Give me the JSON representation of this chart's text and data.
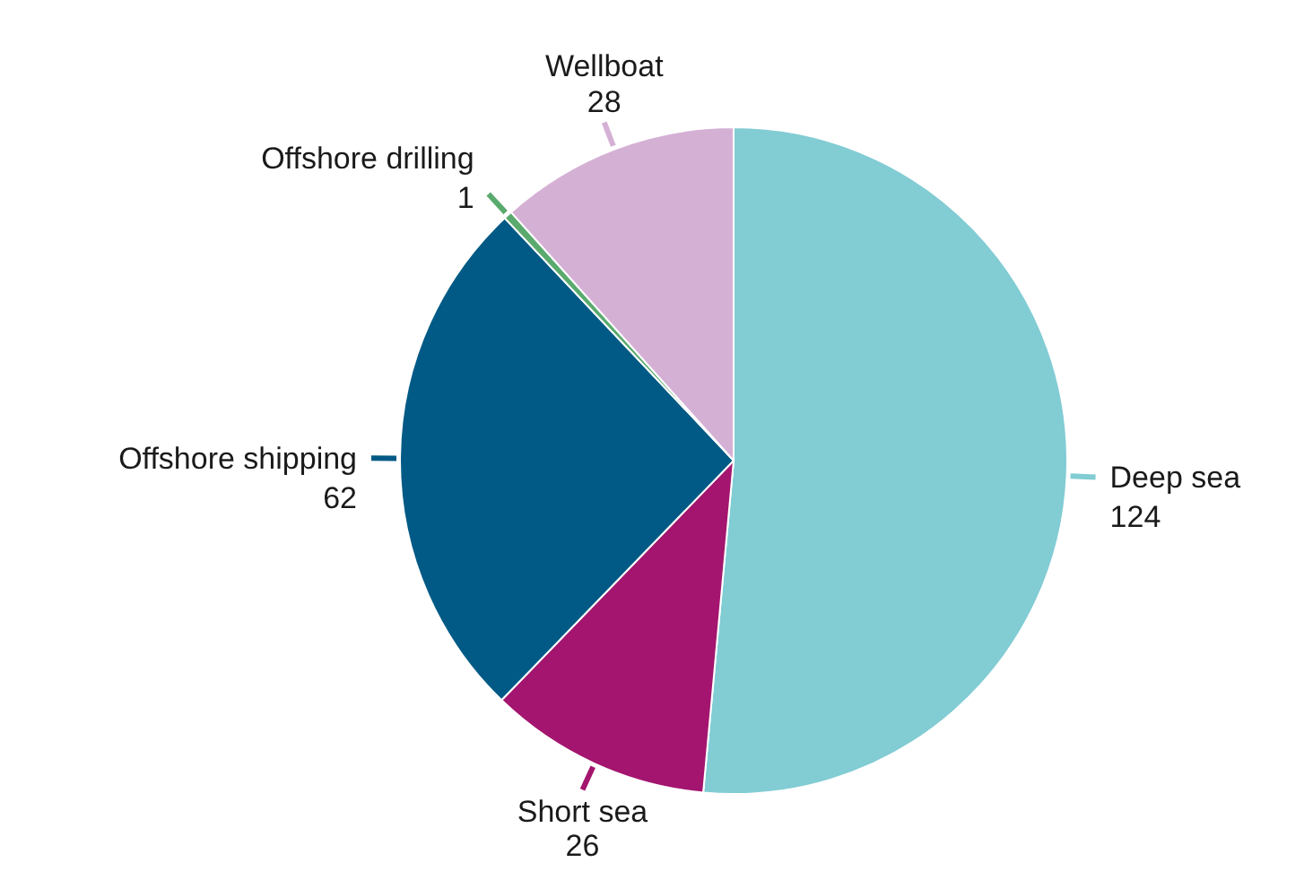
{
  "chart_data": {
    "type": "pie",
    "categories": [
      "Deep sea",
      "Short sea",
      "Offshore shipping",
      "Offshore drilling",
      "Wellboat"
    ],
    "values": [
      124,
      26,
      62,
      1,
      28
    ],
    "colors": [
      "#82ccd4",
      "#a3156e",
      "#005a85",
      "#5aaa6e",
      "#d5b0d5"
    ],
    "data_labels": true
  }
}
